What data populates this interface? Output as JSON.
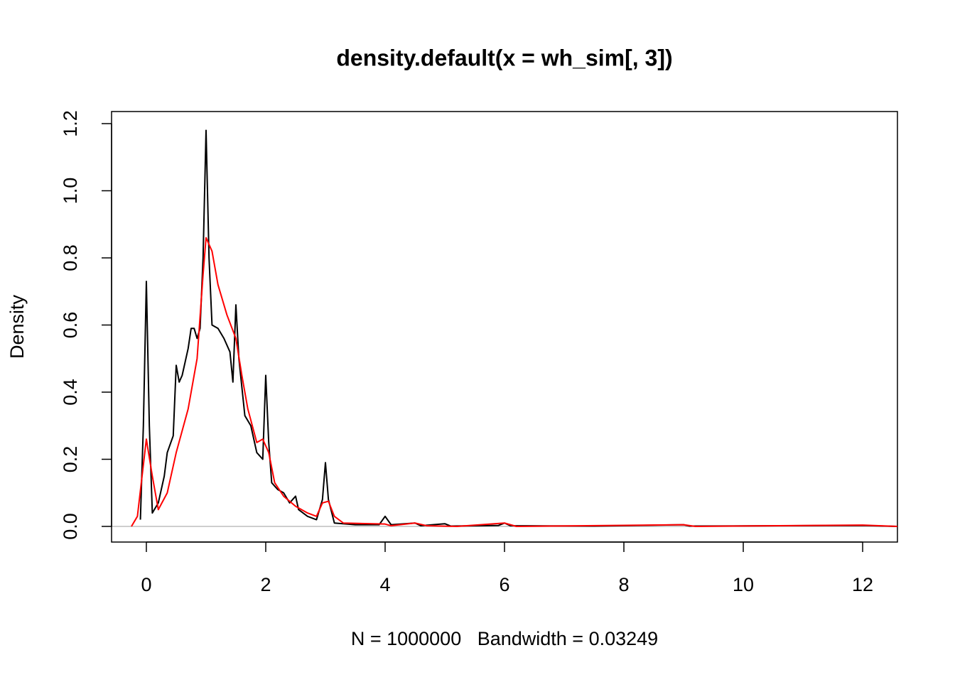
{
  "chart_data": {
    "type": "line",
    "title": "density.default(x = wh_sim[, 3])",
    "xlabel": "N = 1000000   Bandwidth = 0.03249",
    "ylabel": "Density",
    "xlim": [
      -0.583,
      12.583
    ],
    "ylim": [
      -0.0466,
      1.236
    ],
    "xticks": [
      0,
      2,
      4,
      6,
      8,
      10,
      12
    ],
    "yticks": [
      {
        "value": 0,
        "label": "0.0"
      },
      0.2,
      0.4,
      0.6,
      0.8,
      {
        "value": 1,
        "label": "1.0"
      },
      1.2
    ],
    "zero_line_color": "#bebebe",
    "series": [
      {
        "color": "#000000",
        "x": [
          -0.1,
          -0.05,
          0,
          0.05,
          0.1,
          0.2,
          0.3,
          0.35,
          0.45,
          0.5,
          0.55,
          0.6,
          0.7,
          0.75,
          0.8,
          0.85,
          0.9,
          0.95,
          1.0,
          1.05,
          1.1,
          1.2,
          1.3,
          1.4,
          1.45,
          1.5,
          1.55,
          1.65,
          1.75,
          1.85,
          1.95,
          2.0,
          2.05,
          2.1,
          2.2,
          2.3,
          2.4,
          2.5,
          2.55,
          2.7,
          2.85,
          2.95,
          3.0,
          3.05,
          3.15,
          3.5,
          3.9,
          4.0,
          4.1,
          4.5,
          4.6,
          5.0,
          5.1,
          5.9,
          6.0,
          6.1,
          7.5,
          9.0,
          9.1,
          12.0,
          12.58
        ],
        "values": [
          0.02,
          0.3,
          0.73,
          0.3,
          0.04,
          0.07,
          0.15,
          0.22,
          0.27,
          0.48,
          0.43,
          0.45,
          0.53,
          0.59,
          0.59,
          0.56,
          0.59,
          0.8,
          1.18,
          0.8,
          0.6,
          0.59,
          0.56,
          0.52,
          0.43,
          0.66,
          0.5,
          0.33,
          0.3,
          0.22,
          0.2,
          0.45,
          0.25,
          0.13,
          0.11,
          0.1,
          0.07,
          0.09,
          0.05,
          0.03,
          0.02,
          0.08,
          0.19,
          0.08,
          0.01,
          0.005,
          0.005,
          0.03,
          0.005,
          0.01,
          0.002,
          0.008,
          0.001,
          0.003,
          0.01,
          0.002,
          0.001,
          0.005,
          0.001,
          0.003,
          0
        ]
      },
      {
        "color": "#ff0000",
        "x": [
          -0.25,
          -0.15,
          0,
          0.1,
          0.2,
          0.35,
          0.5,
          0.7,
          0.85,
          0.95,
          1.0,
          1.1,
          1.2,
          1.35,
          1.5,
          1.6,
          1.7,
          1.85,
          1.95,
          2.05,
          2.15,
          2.3,
          2.5,
          2.7,
          2.85,
          2.95,
          3.05,
          3.15,
          3.3,
          4.0,
          4.1,
          4.5,
          4.7,
          5.2,
          6.0,
          6.2,
          9.0,
          9.2,
          12.0,
          12.58
        ],
        "values": [
          0,
          0.03,
          0.26,
          0.15,
          0.05,
          0.1,
          0.22,
          0.35,
          0.5,
          0.75,
          0.86,
          0.82,
          0.72,
          0.63,
          0.56,
          0.45,
          0.35,
          0.25,
          0.26,
          0.22,
          0.13,
          0.09,
          0.06,
          0.04,
          0.03,
          0.07,
          0.075,
          0.03,
          0.01,
          0.007,
          0.002,
          0.01,
          0.002,
          0,
          0.01,
          0,
          0.005,
          0,
          0.004,
          0
        ]
      }
    ]
  }
}
